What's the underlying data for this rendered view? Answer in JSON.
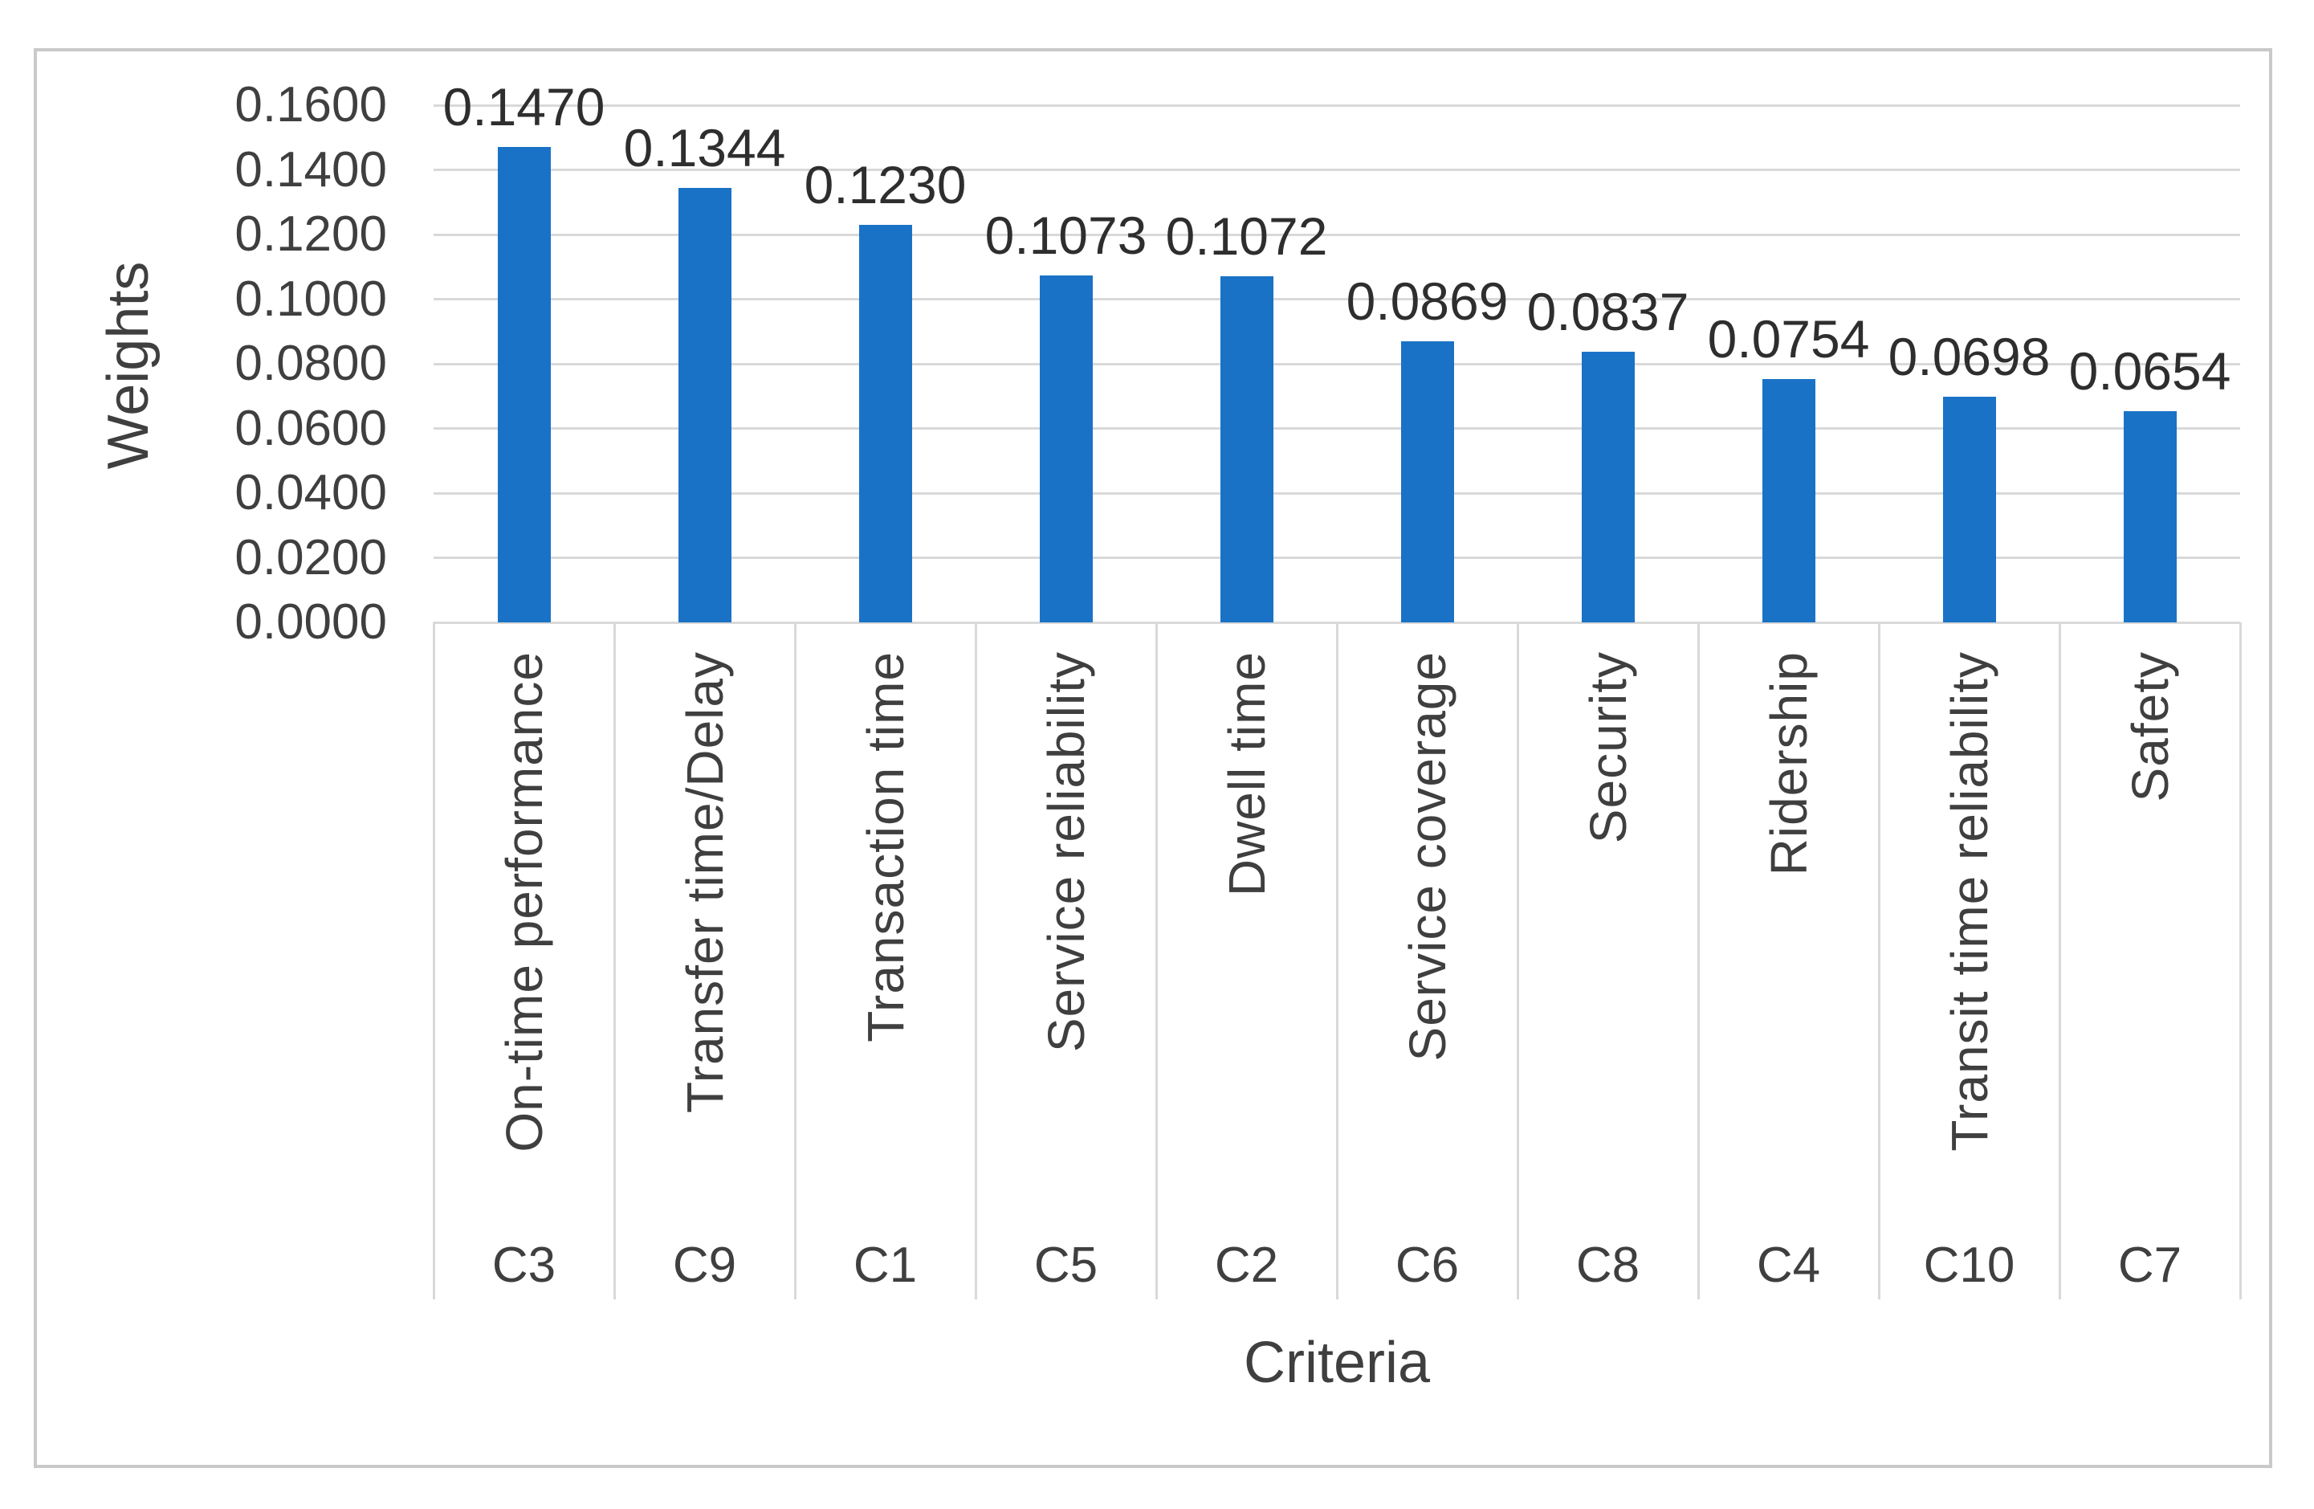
{
  "chart_data": {
    "type": "bar",
    "title": "",
    "xlabel": "Criteria",
    "ylabel": "Weights",
    "ylim": [
      0,
      0.16
    ],
    "ytick_step": 0.02,
    "ytick_labels": [
      "0.1600",
      "0.1400",
      "0.1200",
      "0.1000",
      "0.0800",
      "0.0600",
      "0.0400",
      "0.0200",
      "0.0000"
    ],
    "grid": true,
    "legend": "none",
    "bar_color": "#1A72C6",
    "gridline_color": "#D9D9D9",
    "separator_color": "#D9D9D9",
    "axis_text_color": "#3F3F3F",
    "data_label_color": "#2E2E2E",
    "figure_border_color": "#C9C9C9",
    "categories": [
      "On-time performance",
      "Transfer time/Delay",
      "Transaction time",
      "Service reliability",
      "Dwell time",
      "Service coverage",
      "Security",
      "Ridership",
      "Transit time reliability",
      "Safety"
    ],
    "category_codes": [
      "C3",
      "C9",
      "C1",
      "C5",
      "C2",
      "C6",
      "C8",
      "C4",
      "C10",
      "C7"
    ],
    "values": [
      0.147,
      0.1344,
      0.123,
      0.1073,
      0.1072,
      0.0869,
      0.0837,
      0.0754,
      0.0698,
      0.0654
    ],
    "data_labels": [
      "0.1470",
      "0.1344",
      "0.1230",
      "0.1073",
      "0.1072",
      "0.0869",
      "0.0837",
      "0.0754",
      "0.0698",
      "0.0654"
    ]
  }
}
